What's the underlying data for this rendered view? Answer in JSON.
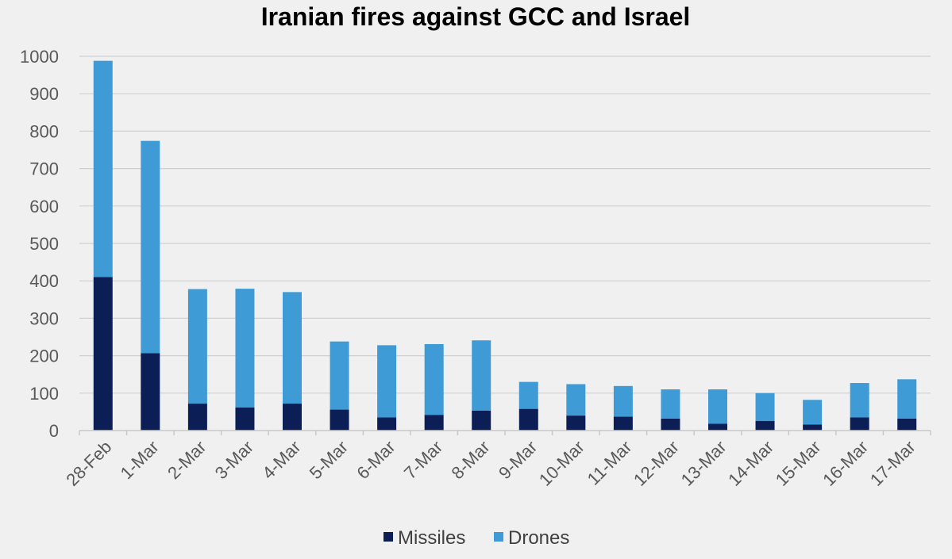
{
  "chart_data": {
    "type": "bar",
    "stacked": true,
    "title": "Iranian fires against GCC and Israel",
    "xlabel": "",
    "ylabel": "",
    "ylim": [
      0,
      1000
    ],
    "yticks": [
      0,
      100,
      200,
      300,
      400,
      500,
      600,
      700,
      800,
      900,
      1000
    ],
    "grid": true,
    "legend_position": "bottom",
    "categories": [
      "28-Feb",
      "1-Mar",
      "2-Mar",
      "3-Mar",
      "4-Mar",
      "5-Mar",
      "6-Mar",
      "7-Mar",
      "8-Mar",
      "9-Mar",
      "10-Mar",
      "11-Mar",
      "12-Mar",
      "13-Mar",
      "14-Mar",
      "15-Mar",
      "16-Mar",
      "17-Mar"
    ],
    "series": [
      {
        "name": "Missiles",
        "color": "#0b1f56",
        "values": [
          410,
          207,
          72,
          62,
          72,
          56,
          35,
          42,
          53,
          58,
          40,
          37,
          32,
          18,
          26,
          16,
          35,
          32
        ]
      },
      {
        "name": "Drones",
        "color": "#3f9bd6",
        "values": [
          578,
          567,
          306,
          317,
          298,
          182,
          193,
          189,
          188,
          72,
          84,
          82,
          78,
          92,
          74,
          66,
          92,
          105
        ]
      }
    ]
  }
}
